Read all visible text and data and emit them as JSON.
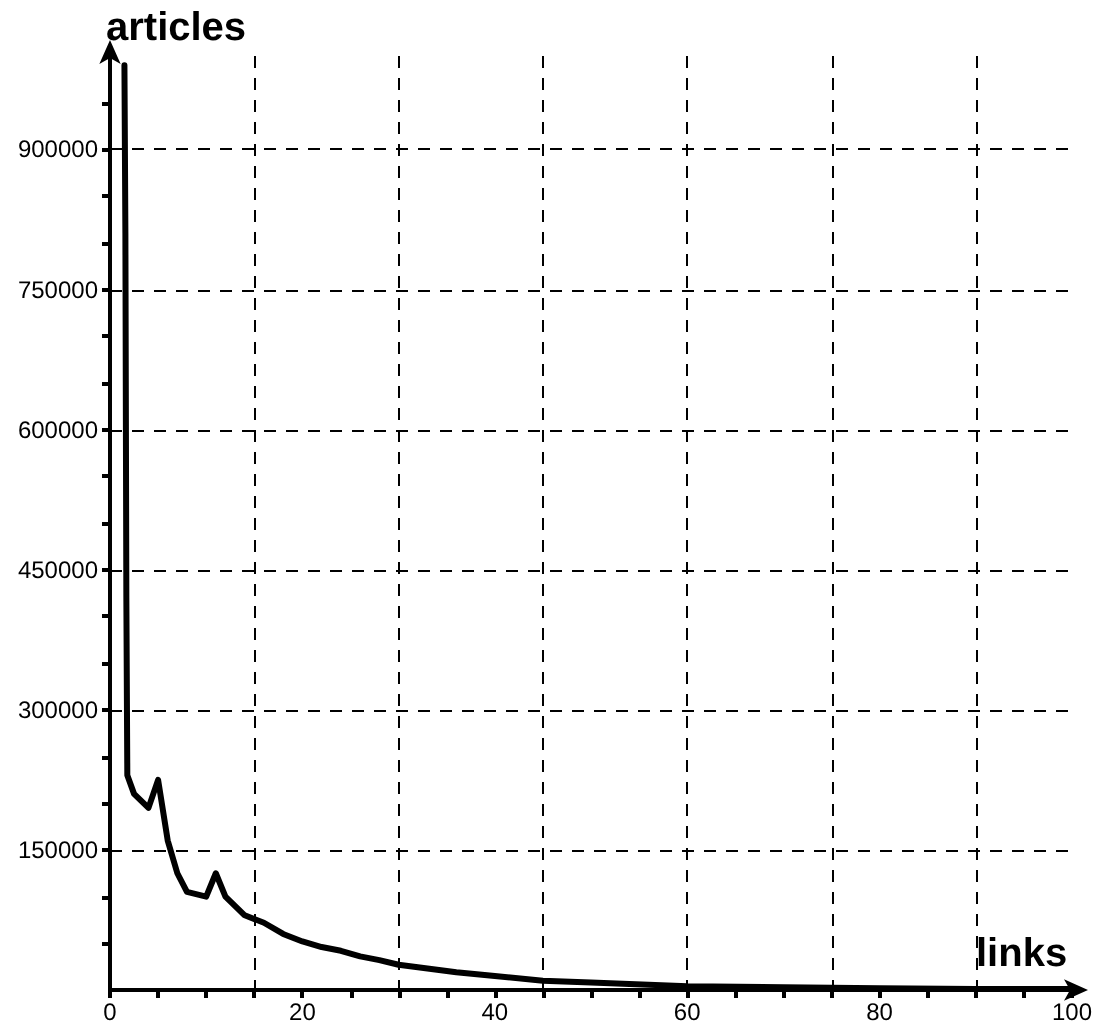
{
  "chart_data": {
    "type": "line",
    "xlabel": "links",
    "ylabel": "articles",
    "xlim": [
      0,
      100
    ],
    "ylim": [
      0,
      1000000
    ],
    "xticks": [
      0,
      {
        "value": 5,
        "label": null
      },
      {
        "value": 10,
        "label": null
      },
      {
        "value": 15,
        "label": null
      },
      20,
      {
        "value": 25,
        "label": null
      },
      {
        "value": 30,
        "label": null
      },
      {
        "value": 35,
        "label": null
      },
      40,
      {
        "value": 45,
        "label": null
      },
      {
        "value": 50,
        "label": null
      },
      {
        "value": 55,
        "label": null
      },
      60,
      {
        "value": 65,
        "label": null
      },
      {
        "value": 70,
        "label": null
      },
      {
        "value": 75,
        "label": null
      },
      80,
      {
        "value": 85,
        "label": null
      },
      {
        "value": 90,
        "label": null
      },
      {
        "value": 95,
        "label": null
      },
      100
    ],
    "yticks": [
      {
        "value": 50000,
        "label": null
      },
      {
        "value": 100000,
        "label": null
      },
      150000,
      {
        "value": 200000,
        "label": null
      },
      {
        "value": 250000,
        "label": null
      },
      300000,
      {
        "value": 350000,
        "label": null
      },
      {
        "value": 400000,
        "label": null
      },
      450000,
      {
        "value": 500000,
        "label": null
      },
      {
        "value": 550000,
        "label": null
      },
      600000,
      {
        "value": 650000,
        "label": null
      },
      {
        "value": 700000,
        "label": null
      },
      750000,
      {
        "value": 800000,
        "label": null
      },
      {
        "value": 850000,
        "label": null
      },
      900000,
      {
        "value": 950000,
        "label": null
      }
    ],
    "grid": true,
    "marker": "none",
    "line_style": "solid",
    "series": [
      {
        "color": "#000000",
        "x": [
          1.5,
          1.6,
          1.7,
          1.8,
          2.5,
          4,
          5,
          6,
          7,
          8,
          10,
          11,
          12,
          14,
          16,
          18,
          20,
          22,
          24,
          26,
          28,
          30,
          33,
          36,
          40,
          45,
          50,
          60,
          70,
          80,
          90,
          100
        ],
        "values": [
          990000,
          810000,
          420000,
          230000,
          210000,
          195000,
          225000,
          160000,
          125000,
          105000,
          100000,
          125000,
          100000,
          80000,
          72000,
          60000,
          52000,
          46000,
          42000,
          36000,
          32000,
          27000,
          23000,
          19000,
          15000,
          10000,
          8000,
          4000,
          3000,
          2000,
          1000,
          1000
        ]
      }
    ]
  }
}
